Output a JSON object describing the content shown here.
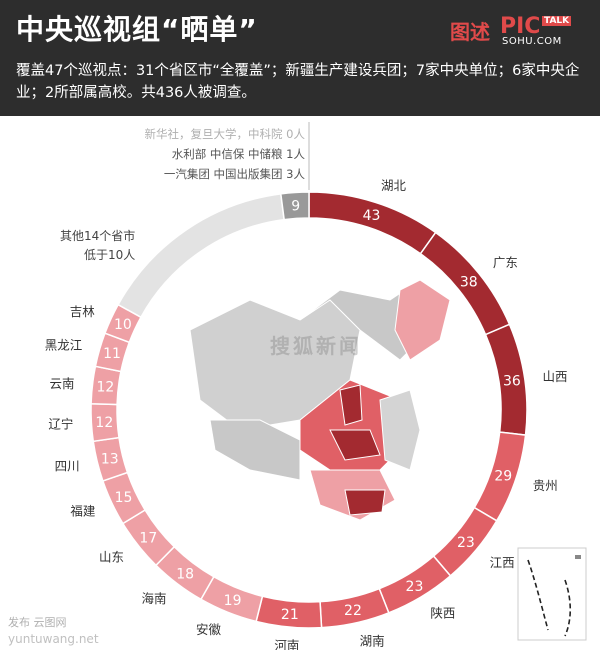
{
  "header": {
    "title": "中央巡视组“晒单”",
    "summary": "覆盖47个巡视点：31个省区市“全覆盖”；新疆生产建设兵团；7家中央单位；6家中央企业；2所部属高校。共436人被调查。",
    "logo_mark": "图述",
    "logo_pic": "PIC",
    "logo_talk": "TALK",
    "logo_domain": "SOHU.COM"
  },
  "watermark": "搜狐新闻",
  "footer": {
    "credit": "发布 云图网",
    "url": "yuntuwang.net"
  },
  "colors": {
    "dark": "#a32a30",
    "medium": "#e06066",
    "light": "#eea0a5",
    "gray_seg": "#999999",
    "light_gray": "#e3e3e3"
  },
  "chart_data": {
    "type": "pie",
    "categories": [
      "湖北",
      "广东",
      "山西",
      "贵州",
      "江西",
      "陕西",
      "湖南",
      "河南",
      "安徽",
      "海南",
      "山东",
      "福建",
      "四川",
      "辽宁",
      "云南",
      "黑龙江",
      "吉林",
      "其他14个省市 低于10人",
      "新华社、复旦大学、中科院 / 水利部 中信保 中储粮 / 一汽集团 中国出版集团"
    ],
    "values": [
      43,
      38,
      36,
      29,
      23,
      23,
      22,
      21,
      19,
      18,
      17,
      15,
      13,
      12,
      12,
      11,
      10,
      65,
      9
    ],
    "total": 436,
    "annotations": {
      "other_provinces_line1": "其他14个省市",
      "other_provinces_line2": "低于10人",
      "note_line1": "新华社，复旦大学，中科院 0人",
      "note_line2": "水利部 中信保 中储粮 1人",
      "note_line3": "一汽集团 中国出版集团 3人"
    }
  }
}
